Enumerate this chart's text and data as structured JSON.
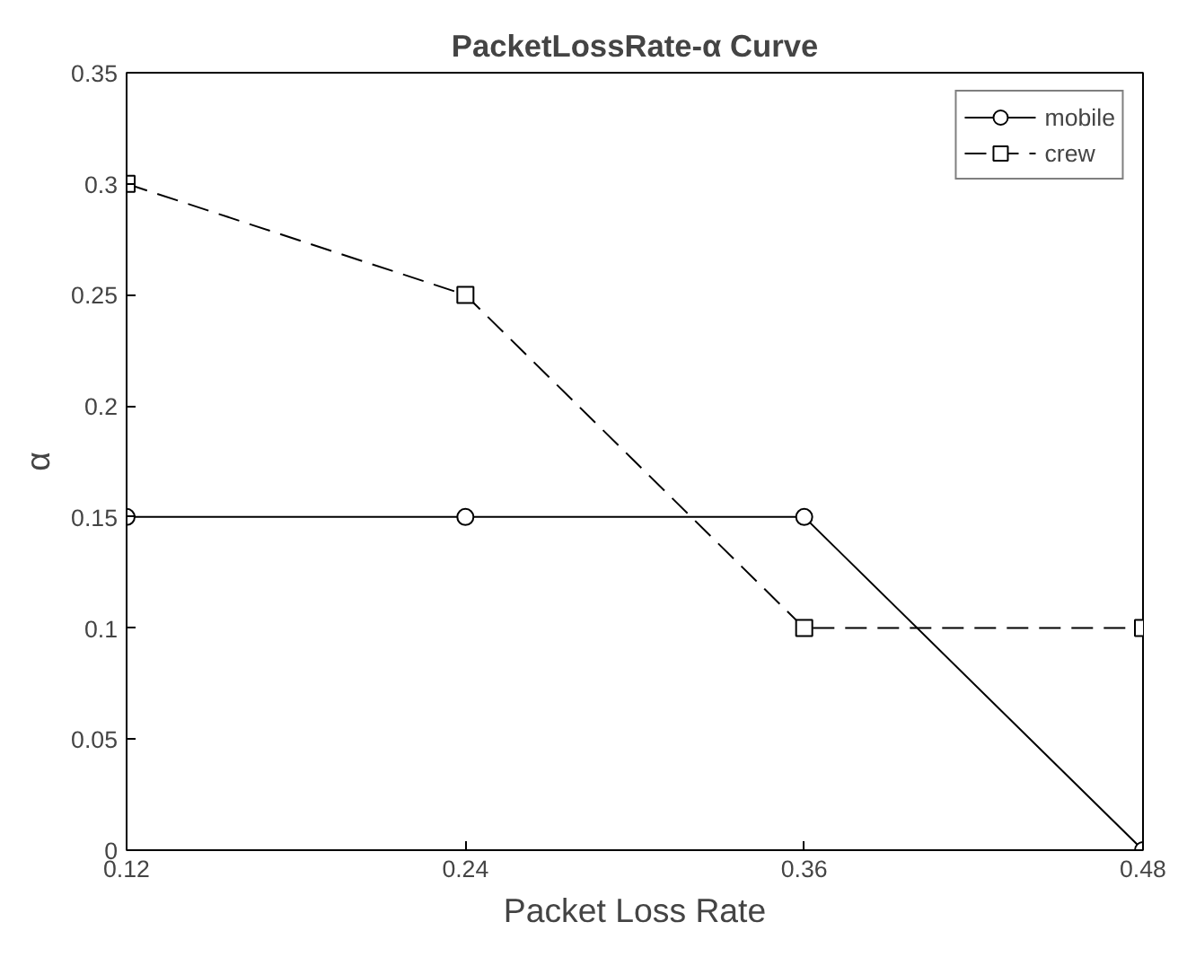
{
  "chart_data": {
    "type": "line",
    "title": "PacketLossRate-α Curve",
    "xlabel": "Packet Loss Rate",
    "ylabel": "α",
    "x": [
      0.12,
      0.24,
      0.36,
      0.48
    ],
    "series": [
      {
        "name": "mobile",
        "color": "#000000",
        "values": [
          0.15,
          0.15,
          0.15,
          0
        ],
        "marker": "circle",
        "line_style": "solid"
      },
      {
        "name": "crew",
        "color": "#000000",
        "values": [
          0.3,
          0.25,
          0.1,
          0.1
        ],
        "marker": "square",
        "line_style": "dashed"
      }
    ],
    "xlim": [
      0.12,
      0.48
    ],
    "ylim": [
      0,
      0.35
    ],
    "xticks": [
      0.12,
      0.24,
      0.36,
      0.48
    ],
    "yticks": [
      0,
      0.05,
      0.1,
      0.15,
      0.2,
      0.25,
      0.3,
      0.35
    ],
    "grid": false,
    "legend": "top right"
  }
}
